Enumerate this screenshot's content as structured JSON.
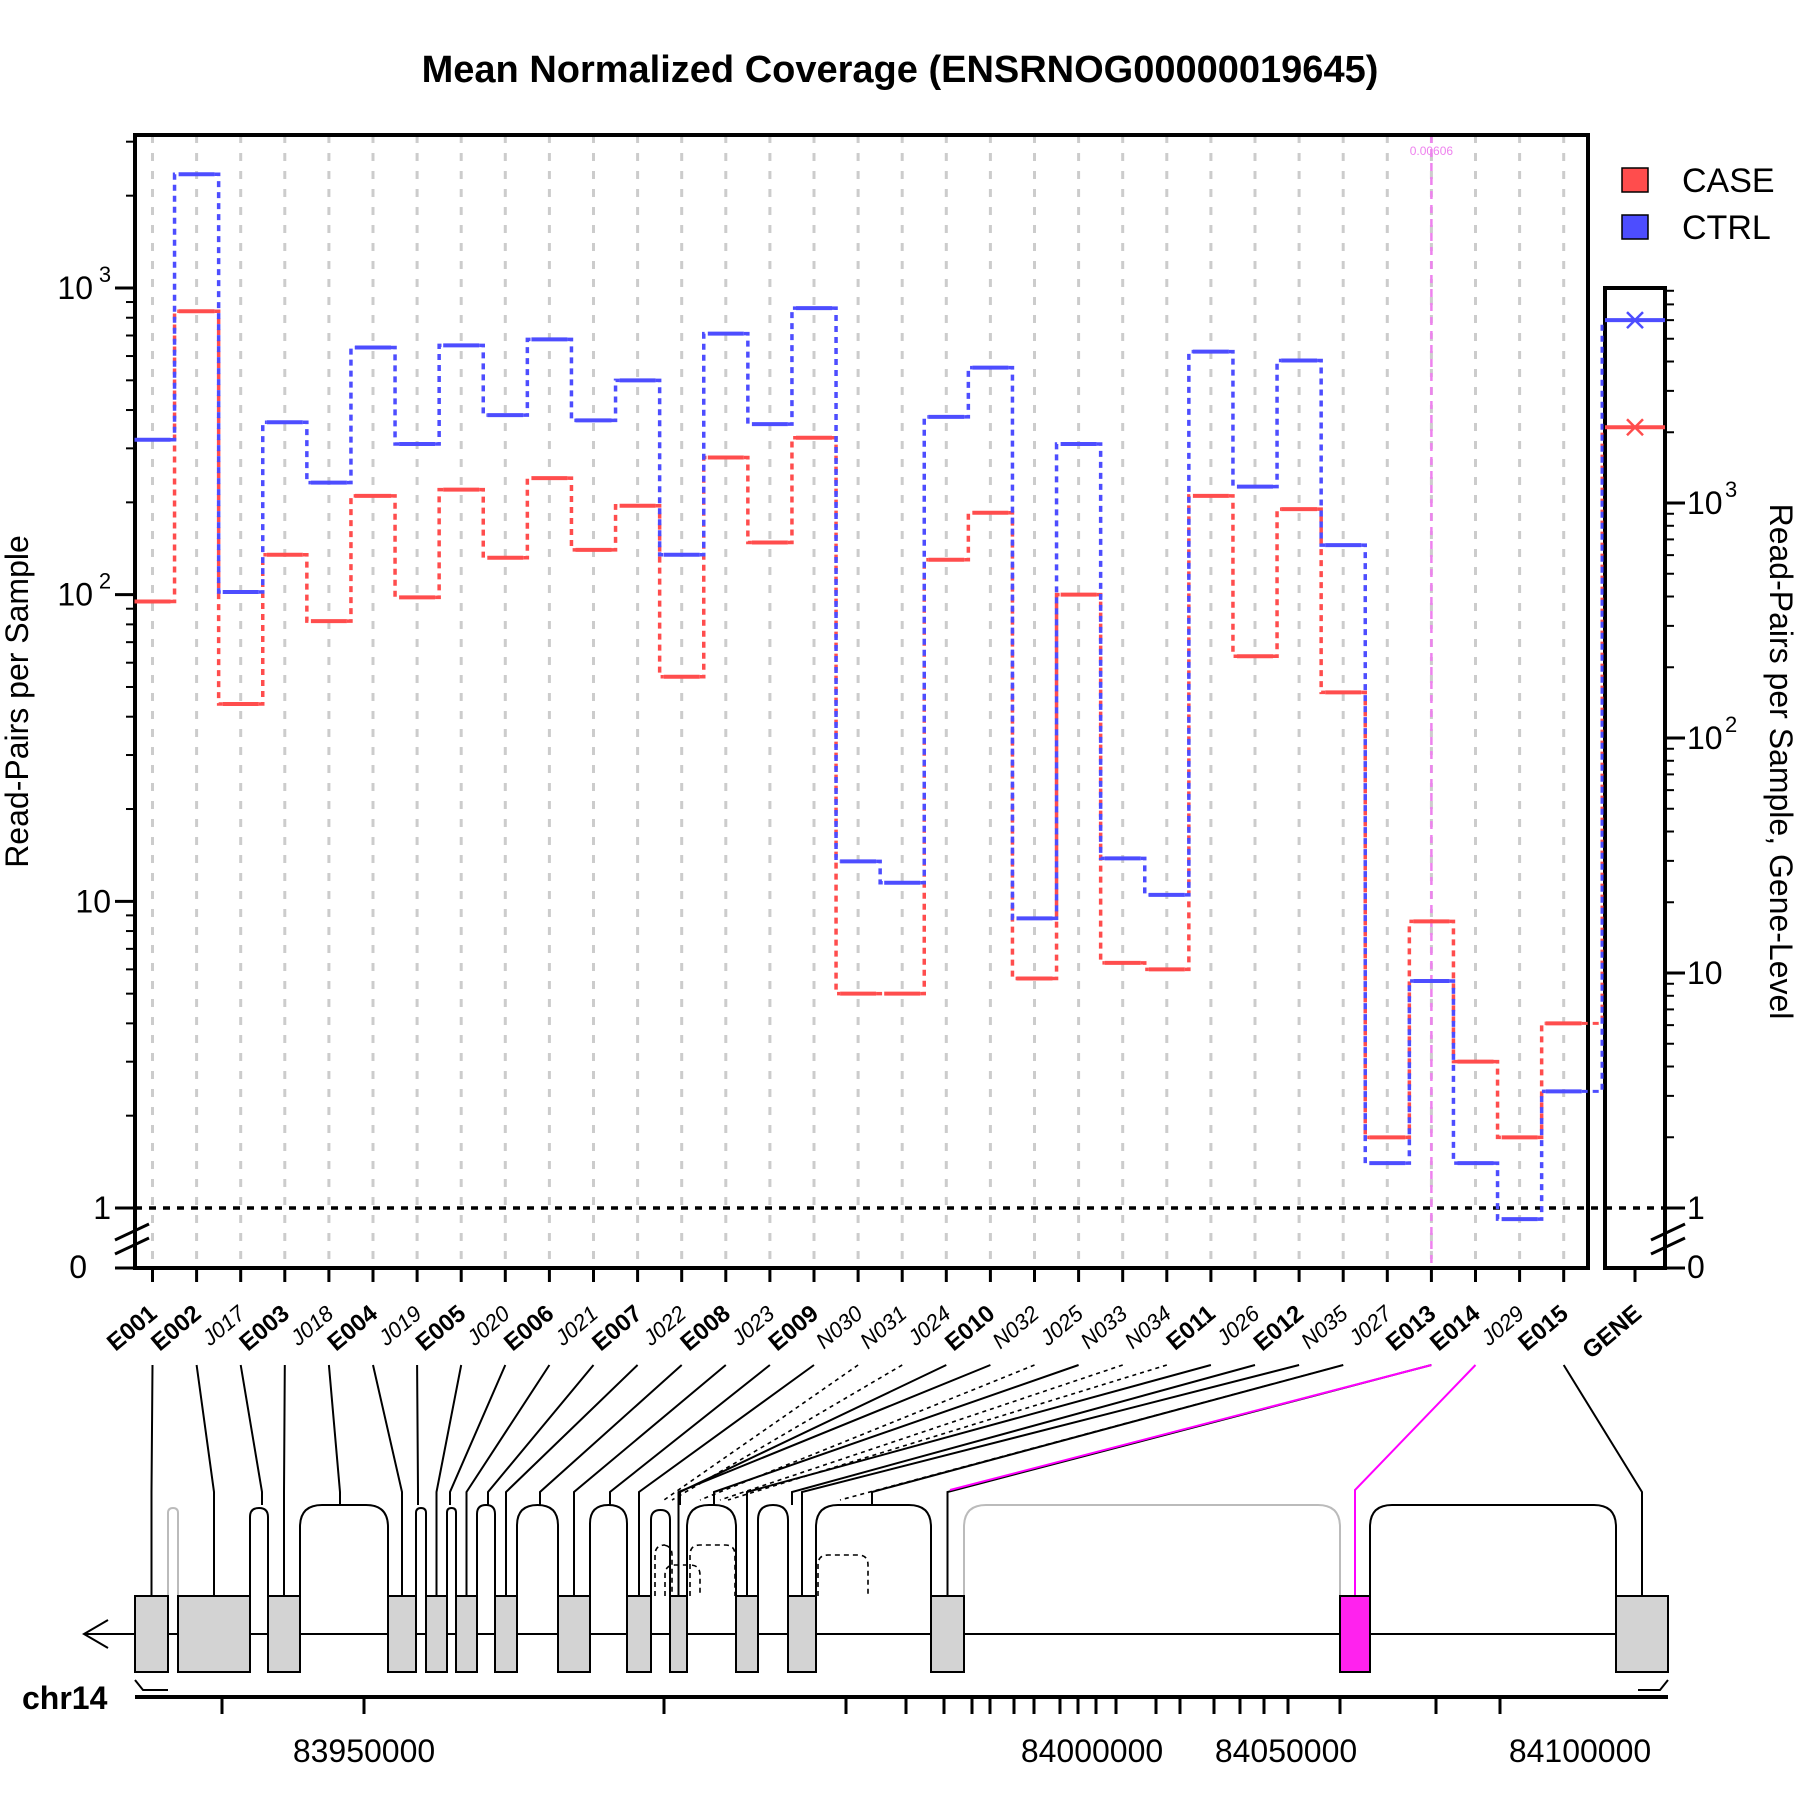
{
  "chart_data": {
    "type": "line",
    "title": "Mean Normalized Coverage (ENSRNOG00000019645)",
    "ylabel": "Read-Pairs per Sample",
    "ylabel_right": "Read-Pairs per Sample, Gene-Level",
    "y_scale": "log",
    "ylim": [
      0,
      3000
    ],
    "y_ticks": [
      {
        "label": "1",
        "value": 1
      },
      {
        "label": "10",
        "value": 10
      },
      {
        "label": "10",
        "sup": "2",
        "value": 100
      },
      {
        "label": "10",
        "sup": "3",
        "value": 1000
      }
    ],
    "y_ticks_right": [
      {
        "label": "1",
        "value": 1
      },
      {
        "label": "10",
        "value": 10
      },
      {
        "label": "10",
        "sup": "2",
        "value": 100
      },
      {
        "label": "10",
        "sup": "3",
        "value": 1000
      }
    ],
    "zero_label": "0",
    "categories": [
      "E001",
      "E002",
      "J017",
      "E003",
      "J018",
      "E004",
      "J019",
      "E005",
      "J020",
      "E006",
      "J021",
      "E007",
      "J022",
      "E008",
      "J023",
      "E009",
      "N030",
      "N031",
      "J024",
      "E010",
      "N032",
      "J025",
      "N033",
      "N034",
      "E011",
      "J026",
      "E012",
      "N035",
      "J027",
      "E013",
      "E014",
      "J029",
      "E015"
    ],
    "category_kind": [
      "exon",
      "exon",
      "junction",
      "exon",
      "junction",
      "exon",
      "junction",
      "exon",
      "junction",
      "exon",
      "junction",
      "exon",
      "junction",
      "exon",
      "junction",
      "exon",
      "novel",
      "novel",
      "junction",
      "exon",
      "novel",
      "junction",
      "novel",
      "novel",
      "exon",
      "junction",
      "exon",
      "novel",
      "junction",
      "exon",
      "exon",
      "junction",
      "exon"
    ],
    "series": [
      {
        "name": "CASE",
        "color": "#ff4d4d",
        "values": [
          95,
          840,
          44,
          135,
          82,
          210,
          98,
          220,
          132,
          240,
          140,
          195,
          54,
          280,
          148,
          325,
          5,
          5,
          130,
          185,
          5.6,
          100,
          6.3,
          6,
          210,
          63,
          190,
          48,
          1.7,
          8.6,
          3,
          1.7,
          4
        ]
      },
      {
        "name": "CTRL",
        "color": "#4d4dff",
        "values": [
          320,
          2350,
          102,
          365,
          232,
          640,
          310,
          650,
          385,
          680,
          370,
          500,
          135,
          710,
          360,
          860,
          13.5,
          11.5,
          380,
          550,
          8.8,
          310,
          13.8,
          10.5,
          620,
          225,
          580,
          145,
          1.4,
          5.5,
          1.4,
          0.92,
          2.4
        ]
      }
    ],
    "gene_level": {
      "label": "GENE",
      "CASE": 2100,
      "CTRL": 6000
    },
    "highlight": {
      "category": "E013",
      "label": "0.00606",
      "color": "#ee82ee"
    },
    "legend": {
      "position": "top-right",
      "entries": [
        "CASE",
        "CTRL"
      ]
    },
    "grid": true,
    "gene_model": {
      "chromosome": "chr14",
      "axis_ticks": [
        "83950000",
        "84000000",
        "84050000",
        "84100000"
      ],
      "strand": "reverse"
    }
  }
}
